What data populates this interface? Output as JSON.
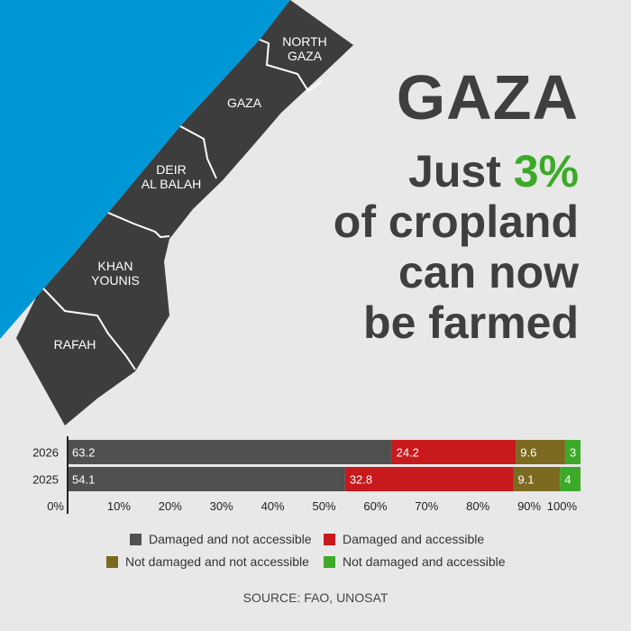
{
  "headline": {
    "title": "GAZA",
    "line1_prefix": "Just ",
    "line1_highlight": "3%",
    "line2": "of cropland",
    "line3": "can now",
    "line4": "be farmed"
  },
  "map_labels": {
    "north_gaza": [
      "NORTH",
      "GAZA"
    ],
    "gaza": [
      "GAZA"
    ],
    "deir_al_balah": [
      "DEIR",
      "AL BALAH"
    ],
    "khan_younis": [
      "KHAN",
      "YOUNIS"
    ],
    "rafah": [
      "RAFAH"
    ]
  },
  "colors": {
    "sea": "#0097d7",
    "land": "#3d3d3d",
    "damaged_not_accessible": "#505050",
    "damaged_accessible": "#c8191c",
    "not_damaged_not_accessible": "#7b6a1f",
    "not_damaged_accessible": "#3caa28",
    "highlight": "#3caa28"
  },
  "chart_data": {
    "type": "bar",
    "orientation": "horizontal",
    "stacked": true,
    "categories": [
      "2026",
      "2025"
    ],
    "series": [
      {
        "name": "Damaged and not accessible",
        "values": [
          63.2,
          54.1
        ]
      },
      {
        "name": "Damaged and accessible",
        "values": [
          24.2,
          32.8
        ]
      },
      {
        "name": "Not damaged and not accessible",
        "values": [
          9.6,
          9.1
        ]
      },
      {
        "name": "Not damaged and accessible",
        "values": [
          3,
          4
        ]
      }
    ],
    "value_labels": [
      [
        "63.2",
        "24.2",
        "9.6",
        "3"
      ],
      [
        "54.1",
        "32.8",
        "9.1",
        "4"
      ]
    ],
    "xlim": [
      0,
      100
    ],
    "xticks": [
      "0%",
      "10%",
      "20%",
      "30%",
      "40%",
      "50%",
      "60%",
      "70%",
      "80%",
      "90%",
      "100%"
    ],
    "legend_position": "bottom"
  },
  "source": "SOURCE: FAO, UNOSAT"
}
